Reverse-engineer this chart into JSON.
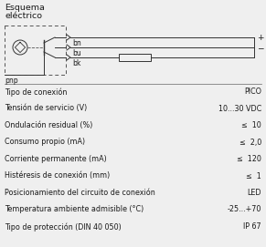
{
  "title_line1": "Esquema",
  "title_line2": "eléctrico",
  "label_pnp": "pnp",
  "wire_labels": [
    "bn",
    "bu",
    "bk"
  ],
  "plus_minus": [
    "+",
    "-"
  ],
  "table_rows": [
    [
      "Tipo de conexión",
      "PICO"
    ],
    [
      "Tensión de servicio (V)",
      "10...30 VDC"
    ],
    [
      "Ondulación residual (%)",
      "≤  10"
    ],
    [
      "Consumo propio (mA)",
      "≤  2,0"
    ],
    [
      "Corriente permanente (mA)",
      "≤  120"
    ],
    [
      "Histéresis de conexión (mm)",
      "≤  1"
    ],
    [
      "Posicionamiento del circuito de conexión",
      "LED"
    ],
    [
      "Temperatura ambiente admisible (°C)",
      "-25...+70"
    ],
    [
      "Tipo de protección (DIN 40 050)",
      "IP 67"
    ]
  ],
  "bg_color": "#efefef",
  "text_color": "#1a1a1a",
  "font_size_title": 6.8,
  "font_size_table": 5.8,
  "font_size_diag": 5.5
}
